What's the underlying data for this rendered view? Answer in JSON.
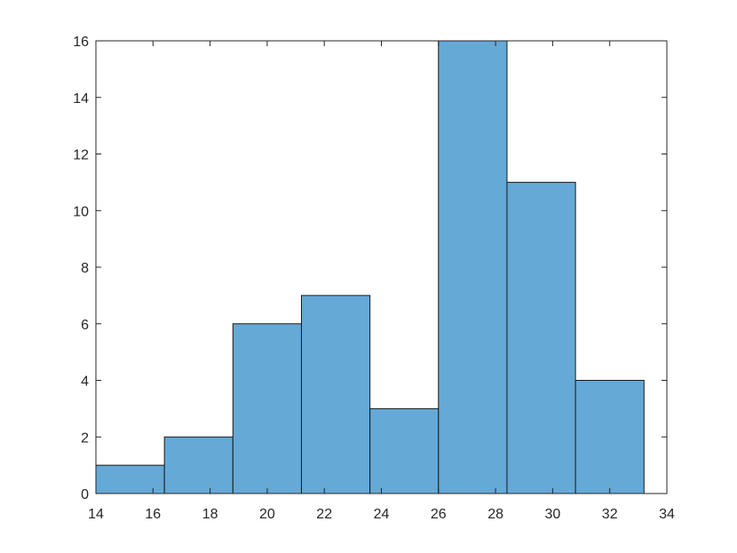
{
  "chart_data": {
    "type": "bar",
    "subtype": "histogram",
    "bins": [
      {
        "x0": 14.0,
        "x1": 16.4,
        "count": 1
      },
      {
        "x0": 16.4,
        "x1": 18.8,
        "count": 2
      },
      {
        "x0": 18.8,
        "x1": 21.2,
        "count": 6
      },
      {
        "x0": 21.2,
        "x1": 23.6,
        "count": 7
      },
      {
        "x0": 23.6,
        "x1": 26.0,
        "count": 3
      },
      {
        "x0": 26.0,
        "x1": 28.4,
        "count": 16
      },
      {
        "x0": 28.4,
        "x1": 30.8,
        "count": 11
      },
      {
        "x0": 30.8,
        "x1": 33.2,
        "count": 4
      }
    ],
    "xlim": [
      14,
      34
    ],
    "ylim": [
      0,
      16
    ],
    "xticks": [
      "14",
      "16",
      "18",
      "20",
      "22",
      "24",
      "26",
      "28",
      "30",
      "32",
      "34"
    ],
    "yticks": [
      "0",
      "2",
      "4",
      "6",
      "8",
      "10",
      "12",
      "14",
      "16"
    ],
    "title": "",
    "xlabel": "",
    "ylabel": "",
    "grid": false,
    "colors": {
      "bar_fill": "#65a9d7",
      "bar_edge": "#1a1a1a",
      "axes": "#262626"
    }
  }
}
